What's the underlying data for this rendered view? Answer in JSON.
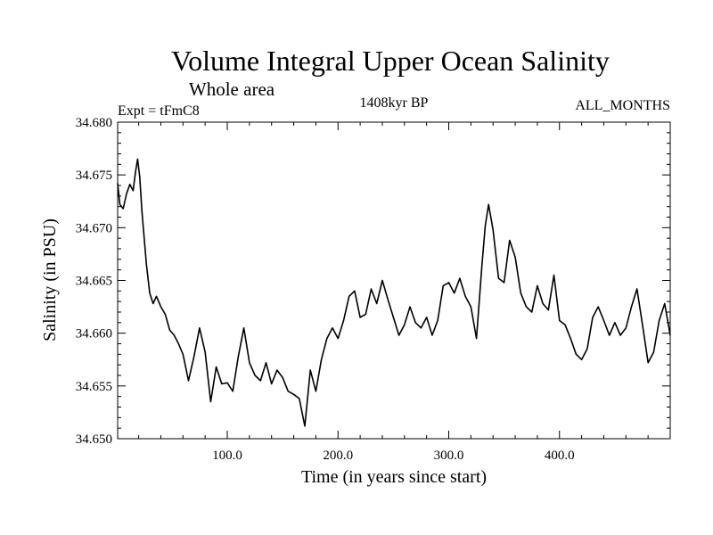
{
  "header": {
    "title": "Volume Integral Upper Ocean Salinity",
    "subtitle": "Whole area",
    "experiment": "Expt = tFmC8",
    "period": "1408kyr BP",
    "months": "ALL_MONTHS"
  },
  "chart_data": {
    "type": "line",
    "title": "Volume Integral Upper Ocean Salinity",
    "xlabel": "Time (in years since start)",
    "ylabel": "Salinity (in PSU)",
    "xlim": [
      1,
      500
    ],
    "ylim": [
      34.65,
      34.68
    ],
    "x_ticks": [
      100,
      200,
      300,
      400
    ],
    "x_tick_labels": [
      "100.0",
      "200.0",
      "300.0",
      "400.0"
    ],
    "y_ticks": [
      34.65,
      34.655,
      34.66,
      34.665,
      34.67,
      34.675,
      34.68
    ],
    "y_tick_labels": [
      "34.650",
      "34.655",
      "34.660",
      "34.665",
      "34.670",
      "34.675",
      "34.680"
    ],
    "series": [
      {
        "name": "Salinity",
        "color": "#000000",
        "x": [
          1,
          3,
          6,
          9,
          12,
          15,
          17,
          19,
          21,
          23,
          25,
          27,
          30,
          33,
          36,
          40,
          44,
          48,
          52,
          56,
          60,
          65,
          70,
          75,
          80,
          85,
          90,
          95,
          100,
          105,
          110,
          115,
          120,
          125,
          130,
          135,
          140,
          145,
          150,
          155,
          160,
          165,
          170,
          175,
          180,
          185,
          190,
          195,
          200,
          205,
          210,
          215,
          220,
          225,
          230,
          235,
          240,
          245,
          250,
          255,
          260,
          265,
          270,
          275,
          280,
          285,
          290,
          295,
          300,
          305,
          310,
          315,
          320,
          325,
          330,
          333,
          336,
          340,
          345,
          350,
          355,
          360,
          365,
          370,
          375,
          380,
          385,
          390,
          395,
          400,
          405,
          410,
          415,
          420,
          425,
          430,
          435,
          440,
          445,
          450,
          455,
          460,
          465,
          470,
          475,
          480,
          485,
          490,
          495,
          500
        ],
        "y": [
          34.6742,
          34.6722,
          34.6718,
          34.6732,
          34.6741,
          34.6735,
          34.6752,
          34.6765,
          34.6748,
          34.6715,
          34.669,
          34.6665,
          34.6638,
          34.6628,
          34.6635,
          34.6625,
          34.6618,
          34.6603,
          34.6598,
          34.659,
          34.658,
          34.6555,
          34.6578,
          34.6605,
          34.6582,
          34.6535,
          34.6568,
          34.6552,
          34.6553,
          34.6545,
          34.6578,
          34.6605,
          34.6572,
          34.656,
          34.6555,
          34.6572,
          34.6552,
          34.6565,
          34.6558,
          34.6545,
          34.6542,
          34.6538,
          34.6512,
          34.6565,
          34.6545,
          34.6575,
          34.6595,
          34.6605,
          34.6595,
          34.6612,
          34.6635,
          34.664,
          34.6615,
          34.6618,
          34.6642,
          34.6628,
          34.665,
          34.6632,
          34.6615,
          34.6598,
          34.6608,
          34.6625,
          34.661,
          34.6605,
          34.6615,
          34.6598,
          34.6612,
          34.6645,
          34.6648,
          34.6638,
          34.6652,
          34.6635,
          34.6625,
          34.6595,
          34.6665,
          34.6702,
          34.6722,
          34.6698,
          34.6652,
          34.6648,
          34.6688,
          34.6672,
          34.6638,
          34.6625,
          34.662,
          34.6645,
          34.6628,
          34.6622,
          34.6655,
          34.6612,
          34.6608,
          34.6595,
          34.658,
          34.6575,
          34.6585,
          34.6615,
          34.6625,
          34.6612,
          34.6598,
          34.661,
          34.6598,
          34.6605,
          34.6625,
          34.6642,
          34.6608,
          34.6572,
          34.6582,
          34.6612,
          34.6628,
          34.6598
        ]
      }
    ]
  }
}
